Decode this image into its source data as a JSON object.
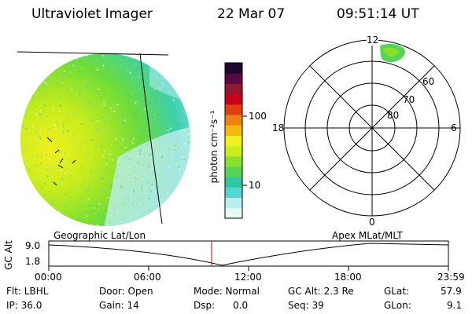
{
  "header": {
    "title": "Ultraviolet Imager",
    "date": "22 Mar 07",
    "time": "09:51:14 UT"
  },
  "colorbar": {
    "label": "photon cm⁻²s⁻¹",
    "ticks": [
      "100",
      "10"
    ],
    "colors": [
      "#e9f9f9",
      "#b8eeee",
      "#55d6d6",
      "#2ec9a3",
      "#55d455",
      "#8ae02a",
      "#c8ec1c",
      "#f0f020",
      "#f8b810",
      "#f08010",
      "#e04010",
      "#c80018",
      "#901830",
      "#5a0840",
      "#1a0830"
    ]
  },
  "polar": {
    "mlt_labels": [
      "12",
      "18",
      "6",
      "0"
    ],
    "lat_labels": [
      "60",
      "70",
      "80"
    ]
  },
  "timeline": {
    "left_label": "Geographic Lat/Lon",
    "right_label": "Apex  MLat/MLT",
    "y_label": "GC Alt",
    "y_ticks": [
      "9.0",
      "1.8"
    ],
    "x_ticks": [
      "00:00",
      "06:00",
      "12:00",
      "18:00",
      "23:59"
    ]
  },
  "status": {
    "flt": "Flt: LBHL",
    "ip": "IP: 36.0",
    "door": "Door: Open",
    "gain": "Gain: 14",
    "mode": "Mode: Normal",
    "dsp": "Dsp:      0.0",
    "gcalt": "GC Alt: 2.3 Re",
    "seq": "Seq: 39",
    "glat_label": "GLat:",
    "glat_value": "57.9",
    "glon_label": "GLon:",
    "glon_value": "9.1"
  }
}
